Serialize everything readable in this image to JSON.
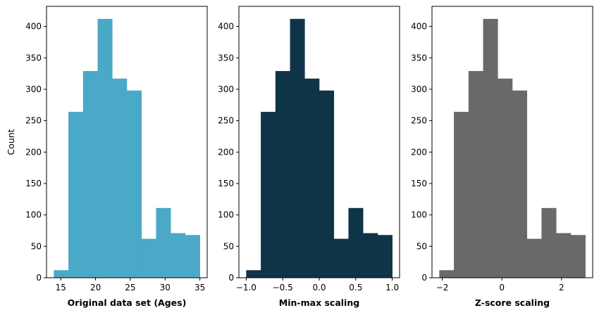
{
  "chart_data": [
    {
      "type": "bar",
      "subtype": "histogram",
      "xlabel": "Original data set (Ages)",
      "ylabel": "Count",
      "color": "#4aa9c7",
      "bin_edges": [
        14,
        16.1,
        18.2,
        20.3,
        22.4,
        24.5,
        26.6,
        28.7,
        30.8,
        32.9,
        35
      ],
      "values": [
        12,
        264,
        329,
        412,
        317,
        298,
        62,
        111,
        71,
        68
      ],
      "xlim": [
        12.95,
        36.05
      ],
      "ylim": [
        0,
        432
      ],
      "xticks": [
        15,
        20,
        25,
        30,
        35
      ],
      "yticks": [
        0,
        50,
        100,
        150,
        200,
        250,
        300,
        350,
        400
      ]
    },
    {
      "type": "bar",
      "subtype": "histogram",
      "xlabel": "Min-max scaling",
      "ylabel": "",
      "color": "#0f3447",
      "bin_edges": [
        -1,
        -0.8,
        -0.6,
        -0.4,
        -0.2,
        0,
        0.2,
        0.4,
        0.6,
        0.8,
        1
      ],
      "values": [
        12,
        264,
        329,
        412,
        317,
        298,
        62,
        111,
        71,
        68
      ],
      "xlim": [
        -1.1,
        1.1
      ],
      "ylim": [
        0,
        432
      ],
      "xticks": [
        -1.0,
        -0.5,
        0.0,
        0.5,
        1.0
      ],
      "xtick_labels": [
        "−1.0",
        "−0.5",
        "0.0",
        "0.5",
        "1.0"
      ],
      "yticks": [
        0,
        50,
        100,
        150,
        200,
        250,
        300,
        350,
        400
      ]
    },
    {
      "type": "bar",
      "subtype": "histogram",
      "xlabel": "Z-score scaling",
      "ylabel": "",
      "color": "#696969",
      "bin_edges": [
        -2.1,
        -1.61,
        -1.12,
        -0.63,
        -0.14,
        0.35,
        0.84,
        1.33,
        1.82,
        2.31,
        2.8
      ],
      "values": [
        12,
        264,
        329,
        412,
        317,
        298,
        62,
        111,
        71,
        68
      ],
      "xlim": [
        -2.345,
        3.045
      ],
      "ylim": [
        0,
        432
      ],
      "xticks": [
        -2,
        0,
        2
      ],
      "xtick_labels": [
        "−2",
        "0",
        "2"
      ],
      "yticks": [
        0,
        50,
        100,
        150,
        200,
        250,
        300,
        350,
        400
      ]
    }
  ]
}
